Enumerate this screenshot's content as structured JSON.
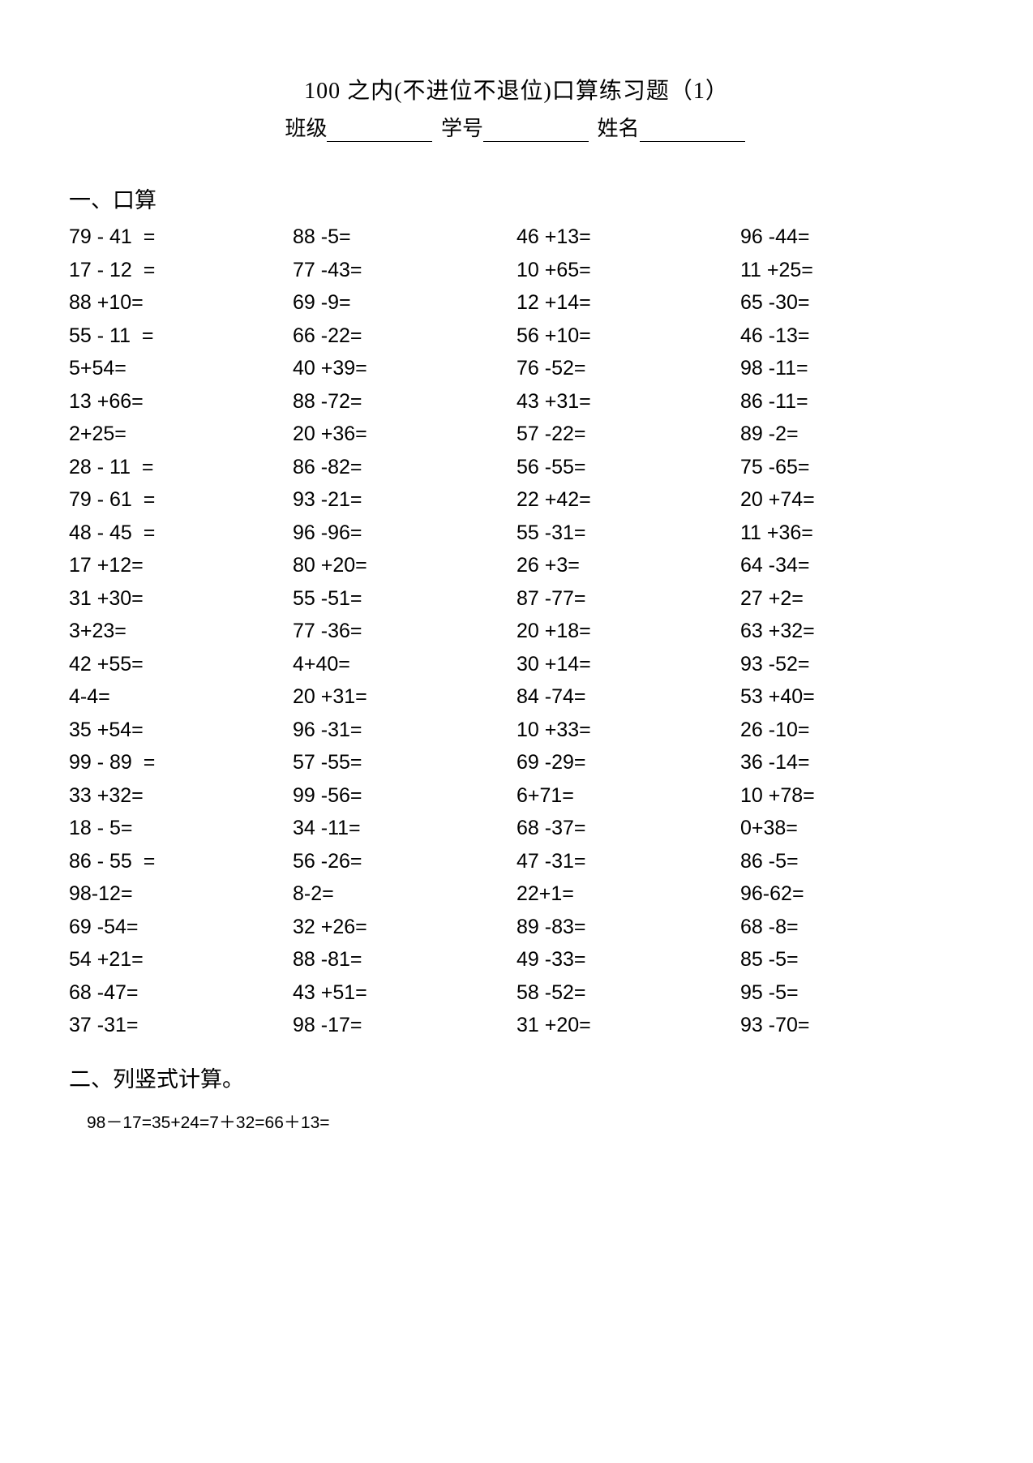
{
  "title": "100 之内(不进位不退位)口算练习题（1）",
  "info": {
    "class_label": "班级",
    "id_label": "学号",
    "name_label": "姓名"
  },
  "section1_heading": "一、口算",
  "problems": [
    [
      "79 - 41  =",
      "88 -5=",
      "46 +13=",
      "96 -44="
    ],
    [
      "17 - 12  =",
      "77 -43=",
      "10 +65=",
      "11 +25="
    ],
    [
      "88 +10=",
      "69 -9=",
      "12 +14=",
      "65 -30="
    ],
    [
      "55 - 11  =",
      "66 -22=",
      "56 +10=",
      "46 -13="
    ],
    [
      "5+54=",
      "40 +39=",
      "76 -52=",
      "98 -11="
    ],
    [
      "13 +66=",
      "88 -72=",
      "43 +31=",
      "86 -11="
    ],
    [
      "2+25=",
      "20 +36=",
      "57 -22=",
      "89 -2="
    ],
    [
      "28 - 11  =",
      "86 -82=",
      "56 -55=",
      "75 -65="
    ],
    [
      "79 - 61  =",
      "93 -21=",
      "22 +42=",
      "20 +74="
    ],
    [
      "48 - 45  =",
      "96 -96=",
      "55 -31=",
      "11 +36="
    ],
    [
      "17 +12=",
      "80 +20=",
      "26 +3=",
      "64 -34="
    ],
    [
      "31 +30=",
      "55 -51=",
      "87 -77=",
      "27 +2="
    ],
    [
      "3+23=",
      "77 -36=",
      "20 +18=",
      "63 +32="
    ],
    [
      "42 +55=",
      "4+40=",
      "30 +14=",
      "93 -52="
    ],
    [
      "4-4=",
      "20 +31=",
      "84 -74=",
      "53 +40="
    ],
    [
      "35 +54=",
      "96 -31=",
      "10 +33=",
      "26 -10="
    ],
    [
      "99 - 89  =",
      "57 -55=",
      "69 -29=",
      "36 -14="
    ],
    [
      "33 +32=",
      "99 -56=",
      "6+71=",
      "10 +78="
    ],
    [
      "18 - 5=",
      "34 -11=",
      "68 -37=",
      "0+38="
    ],
    [
      "86 - 55  =",
      "56 -26=",
      "47 -31=",
      "86 -5="
    ],
    [
      "98-12=",
      "8-2=",
      "22+1=",
      "96-62="
    ],
    [
      "69 -54=",
      "32 +26=",
      "89 -83=",
      "68 -8="
    ],
    [
      "54 +21=",
      "88 -81=",
      "49 -33=",
      "85 -5="
    ],
    [
      "68 -47=",
      "43 +51=",
      "58 -52=",
      "95 -5="
    ],
    [
      "37 -31=",
      "98 -17=",
      "31 +20=",
      "93 -70="
    ]
  ],
  "section2_heading": "二、列竖式计算。",
  "section2_content": "98－17=35+24=7＋32=66＋13=",
  "styles": {
    "background_color": "#ffffff",
    "text_color": "#000000",
    "title_fontsize": 28,
    "body_fontsize": 25,
    "section2_fontsize": 21,
    "heading_fontsize": 27,
    "font_family_cn": "SimSun",
    "font_family_num": "Arial"
  }
}
